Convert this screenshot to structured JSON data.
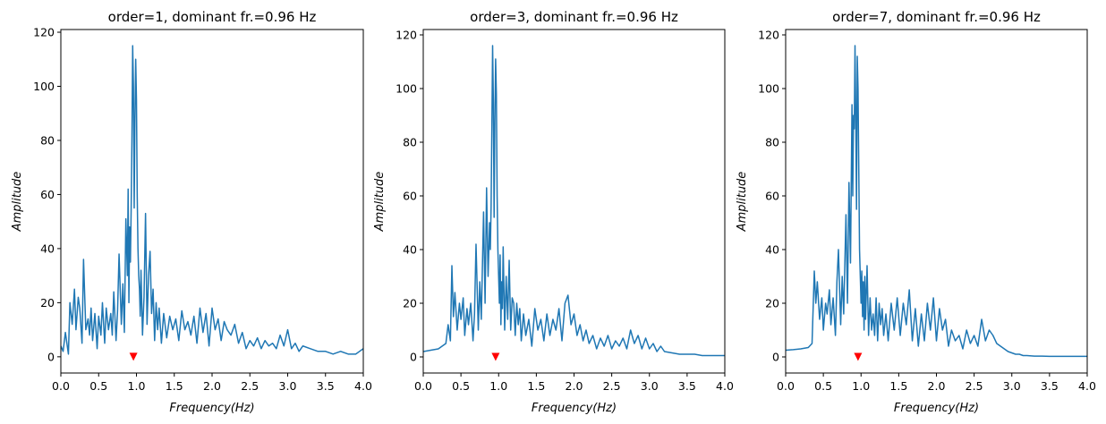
{
  "figure": {
    "style": {
      "line_color": "#1f77b4",
      "marker_color": "#ff0000"
    }
  },
  "chart_data": [
    {
      "type": "line",
      "title": "order=1, dominant fr.=0.96 Hz",
      "xlabel": "Frequency(Hz)",
      "ylabel": "Amplitude",
      "xlim": [
        0,
        4
      ],
      "ylim": [
        -6,
        121
      ],
      "xticks": [
        "0.0",
        "0.5",
        "1.0",
        "1.5",
        "2.0",
        "2.5",
        "3.0",
        "3.5",
        "4.0"
      ],
      "yticks": [
        "0",
        "20",
        "40",
        "60",
        "80",
        "100",
        "120"
      ],
      "dominant_marker": {
        "x": 0.96,
        "y": 0
      },
      "series": [
        {
          "x": [
            0.0,
            0.03,
            0.06,
            0.1,
            0.12,
            0.15,
            0.18,
            0.2,
            0.23,
            0.25,
            0.28,
            0.3,
            0.33,
            0.36,
            0.38,
            0.4,
            0.42,
            0.45,
            0.48,
            0.5,
            0.53,
            0.55,
            0.58,
            0.6,
            0.63,
            0.66,
            0.68,
            0.7,
            0.73,
            0.75,
            0.77,
            0.8,
            0.82,
            0.84,
            0.86,
            0.88,
            0.89,
            0.9,
            0.91,
            0.92,
            0.93,
            0.94,
            0.95,
            0.96,
            0.97,
            0.98,
            0.99,
            1.0,
            1.01,
            1.02,
            1.03,
            1.04,
            1.05,
            1.06,
            1.08,
            1.1,
            1.12,
            1.14,
            1.16,
            1.18,
            1.2,
            1.22,
            1.24,
            1.26,
            1.28,
            1.3,
            1.33,
            1.36,
            1.4,
            1.44,
            1.48,
            1.52,
            1.56,
            1.6,
            1.64,
            1.68,
            1.72,
            1.76,
            1.8,
            1.84,
            1.88,
            1.92,
            1.96,
            2.0,
            2.04,
            2.08,
            2.12,
            2.16,
            2.2,
            2.25,
            2.3,
            2.35,
            2.4,
            2.45,
            2.5,
            2.55,
            2.6,
            2.65,
            2.7,
            2.75,
            2.8,
            2.85,
            2.9,
            2.95,
            3.0,
            3.05,
            3.1,
            3.15,
            3.2,
            3.3,
            3.4,
            3.5,
            3.6,
            3.7,
            3.8,
            3.9,
            3.95,
            4.0
          ],
          "y": [
            4,
            2,
            9,
            1,
            20,
            12,
            25,
            10,
            22,
            18,
            5,
            36,
            10,
            14,
            8,
            18,
            6,
            16,
            3,
            15,
            8,
            20,
            5,
            18,
            10,
            16,
            8,
            24,
            6,
            17,
            38,
            12,
            27,
            9,
            51,
            30,
            62,
            20,
            48,
            35,
            55,
            80,
            115,
            100,
            55,
            88,
            110,
            95,
            60,
            40,
            30,
            25,
            15,
            32,
            8,
            22,
            53,
            12,
            30,
            39,
            16,
            25,
            6,
            20,
            10,
            18,
            5,
            16,
            7,
            15,
            10,
            14,
            6,
            17,
            10,
            13,
            8,
            15,
            5,
            18,
            9,
            16,
            4,
            18,
            10,
            14,
            6,
            13,
            10,
            8,
            12,
            5,
            9,
            3,
            6,
            4,
            7,
            3,
            6,
            4,
            5,
            3,
            8,
            4,
            10,
            3,
            5,
            2,
            4,
            3,
            2,
            2,
            1,
            2,
            1,
            1,
            2,
            3
          ]
        }
      ]
    },
    {
      "type": "line",
      "title": "order=3, dominant fr.=0.96 Hz",
      "xlabel": "Frequency(Hz)",
      "ylabel": "Amplitude",
      "xlim": [
        0,
        4
      ],
      "ylim": [
        -6,
        122
      ],
      "xticks": [
        "0.0",
        "0.5",
        "1.0",
        "1.5",
        "2.0",
        "2.5",
        "3.0",
        "3.5",
        "4.0"
      ],
      "yticks": [
        "0",
        "20",
        "40",
        "60",
        "80",
        "100",
        "120"
      ],
      "dominant_marker": {
        "x": 0.96,
        "y": 0
      },
      "series": [
        {
          "x": [
            0.0,
            0.1,
            0.2,
            0.25,
            0.3,
            0.33,
            0.36,
            0.38,
            0.4,
            0.42,
            0.45,
            0.48,
            0.5,
            0.53,
            0.55,
            0.58,
            0.6,
            0.63,
            0.66,
            0.68,
            0.7,
            0.73,
            0.75,
            0.77,
            0.8,
            0.82,
            0.84,
            0.86,
            0.88,
            0.89,
            0.9,
            0.91,
            0.92,
            0.93,
            0.94,
            0.95,
            0.96,
            0.97,
            0.98,
            0.99,
            1.0,
            1.01,
            1.02,
            1.03,
            1.04,
            1.05,
            1.06,
            1.08,
            1.1,
            1.12,
            1.14,
            1.16,
            1.18,
            1.2,
            1.22,
            1.24,
            1.26,
            1.28,
            1.3,
            1.33,
            1.36,
            1.4,
            1.44,
            1.48,
            1.52,
            1.56,
            1.6,
            1.64,
            1.68,
            1.72,
            1.76,
            1.8,
            1.84,
            1.88,
            1.92,
            1.96,
            2.0,
            2.04,
            2.08,
            2.12,
            2.16,
            2.2,
            2.25,
            2.3,
            2.35,
            2.4,
            2.45,
            2.5,
            2.55,
            2.6,
            2.65,
            2.7,
            2.75,
            2.8,
            2.85,
            2.9,
            2.95,
            3.0,
            3.05,
            3.1,
            3.15,
            3.2,
            3.3,
            3.4,
            3.5,
            3.6,
            3.7,
            3.8,
            3.9,
            4.0
          ],
          "y": [
            2,
            2.5,
            3,
            4,
            5,
            12,
            6,
            34,
            15,
            24,
            10,
            20,
            14,
            22,
            8,
            18,
            12,
            20,
            6,
            16,
            42,
            10,
            28,
            14,
            54,
            20,
            63,
            30,
            50,
            40,
            56,
            85,
            116,
            95,
            52,
            88,
            111,
            98,
            60,
            40,
            30,
            20,
            38,
            12,
            28,
            18,
            41,
            10,
            30,
            14,
            36,
            10,
            22,
            20,
            8,
            20,
            12,
            18,
            6,
            16,
            8,
            14,
            4,
            18,
            10,
            14,
            6,
            16,
            8,
            14,
            10,
            18,
            6,
            20,
            23,
            12,
            16,
            8,
            12,
            6,
            10,
            5,
            8,
            3,
            7,
            4,
            8,
            3,
            6,
            4,
            7,
            3,
            10,
            5,
            8,
            3,
            7,
            3,
            5,
            2,
            4,
            2,
            1.5,
            1,
            1,
            1,
            0.5,
            0.5,
            0.5,
            0.5
          ]
        }
      ]
    },
    {
      "type": "line",
      "title": "order=7, dominant fr.=0.96 Hz",
      "xlabel": "Frequency(Hz)",
      "ylabel": "Amplitude",
      "xlim": [
        0,
        4
      ],
      "ylim": [
        -6,
        122
      ],
      "xticks": [
        "0.0",
        "0.5",
        "1.0",
        "1.5",
        "2.0",
        "2.5",
        "3.0",
        "3.5",
        "4.0"
      ],
      "yticks": [
        "0",
        "20",
        "40",
        "60",
        "80",
        "100",
        "120"
      ],
      "dominant_marker": {
        "x": 0.96,
        "y": 0
      },
      "series": [
        {
          "x": [
            0.0,
            0.1,
            0.2,
            0.3,
            0.35,
            0.38,
            0.4,
            0.42,
            0.45,
            0.48,
            0.5,
            0.53,
            0.55,
            0.58,
            0.6,
            0.63,
            0.66,
            0.68,
            0.7,
            0.73,
            0.75,
            0.77,
            0.8,
            0.82,
            0.84,
            0.86,
            0.88,
            0.89,
            0.9,
            0.91,
            0.92,
            0.93,
            0.94,
            0.95,
            0.96,
            0.97,
            0.98,
            0.99,
            1.0,
            1.01,
            1.02,
            1.03,
            1.04,
            1.05,
            1.06,
            1.08,
            1.1,
            1.12,
            1.14,
            1.16,
            1.18,
            1.2,
            1.22,
            1.24,
            1.26,
            1.28,
            1.3,
            1.33,
            1.36,
            1.4,
            1.44,
            1.48,
            1.52,
            1.56,
            1.6,
            1.64,
            1.68,
            1.72,
            1.76,
            1.8,
            1.84,
            1.88,
            1.92,
            1.96,
            2.0,
            2.04,
            2.08,
            2.12,
            2.16,
            2.2,
            2.25,
            2.3,
            2.35,
            2.4,
            2.45,
            2.5,
            2.55,
            2.6,
            2.65,
            2.7,
            2.75,
            2.8,
            2.85,
            2.9,
            2.95,
            3.0,
            3.05,
            3.1,
            3.15,
            3.2,
            3.3,
            3.4,
            3.5,
            3.6,
            3.7,
            3.8,
            3.9,
            4.0
          ],
          "y": [
            2.5,
            2.7,
            3,
            3.5,
            5,
            32,
            20,
            28,
            14,
            22,
            10,
            20,
            16,
            25,
            12,
            22,
            8,
            28,
            40,
            12,
            30,
            16,
            53,
            20,
            65,
            35,
            94,
            60,
            90,
            85,
            116,
            90,
            55,
            112,
            100,
            70,
            40,
            30,
            20,
            32,
            15,
            28,
            10,
            30,
            14,
            34,
            8,
            22,
            10,
            16,
            8,
            22,
            6,
            20,
            12,
            18,
            8,
            16,
            6,
            20,
            10,
            22,
            8,
            20,
            12,
            25,
            6,
            18,
            4,
            16,
            6,
            20,
            10,
            22,
            6,
            18,
            10,
            14,
            4,
            10,
            6,
            8,
            3,
            10,
            5,
            8,
            4,
            14,
            6,
            10,
            8,
            5,
            4,
            3,
            2,
            1.5,
            1,
            1,
            0.5,
            0.5,
            0.3,
            0.3,
            0.2,
            0.2,
            0.2,
            0.2,
            0.2,
            0.2
          ]
        }
      ]
    }
  ]
}
